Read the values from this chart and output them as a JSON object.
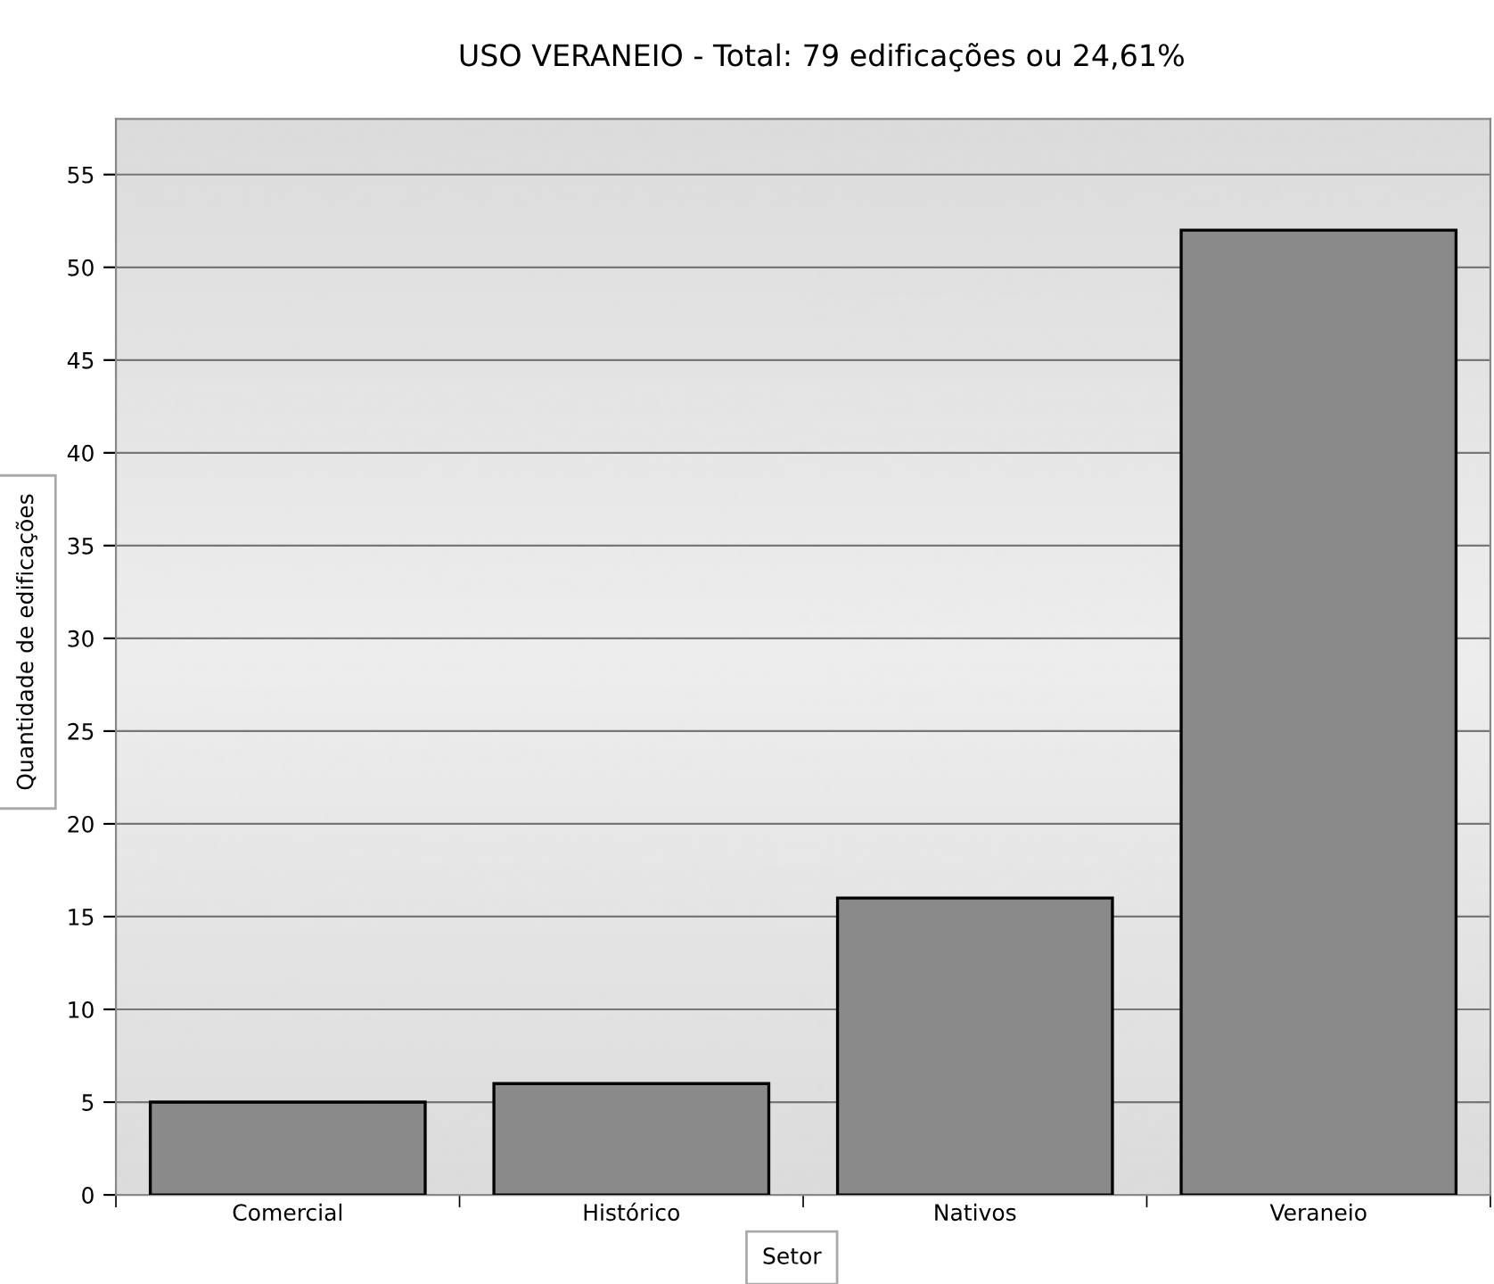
{
  "chart_data": {
    "type": "bar",
    "title": "USO VERANEIO - Total: 79 edificações ou 24,61%",
    "xlabel": "Setor",
    "ylabel": "Quantidade de edificações",
    "categories": [
      "Comercial",
      "Histórico",
      "Nativos",
      "Veraneio"
    ],
    "series": [
      {
        "color": "#8a8a8a",
        "values": [
          5,
          6,
          16,
          52
        ]
      }
    ],
    "ylim": [
      0,
      58
    ],
    "yticks": [
      0,
      5,
      10,
      15,
      20,
      25,
      30,
      35,
      40,
      45,
      50,
      55
    ],
    "grid": "y"
  }
}
